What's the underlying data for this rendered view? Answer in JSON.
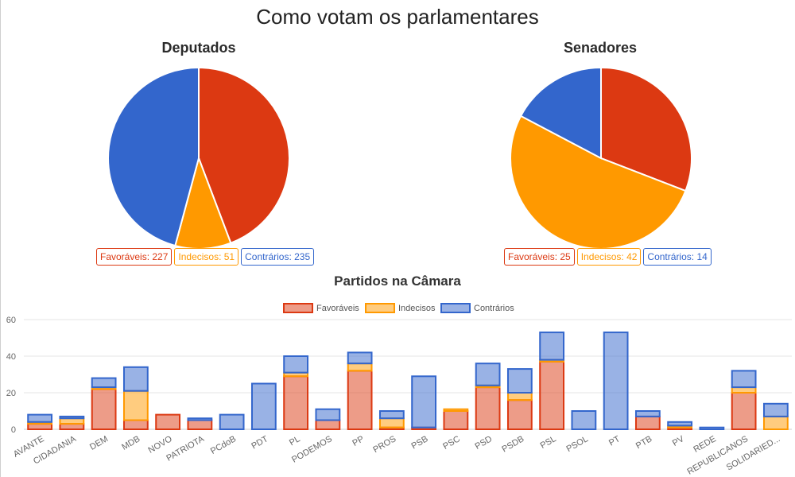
{
  "page": {
    "title": "Como votam os parlamentares"
  },
  "colors": {
    "favoraveis": "#dc3912",
    "indecisos": "#ff9900",
    "contrarios": "#3366cc"
  },
  "deputados": {
    "title": "Deputados",
    "legend": {
      "favoraveis": "Favoráveis: 227",
      "indecisos": "Indecisos: 51",
      "contrarios": "Contrários: 235"
    }
  },
  "senadores": {
    "title": "Senadores",
    "legend": {
      "favoraveis": "Favoráveis: 25",
      "indecisos": "Indecisos: 42",
      "contrarios": "Contrários: 14"
    }
  },
  "partidos": {
    "title": "Partidos na Câmara"
  },
  "chart_data": [
    {
      "type": "pie",
      "title": "Deputados",
      "labels": [
        "Favoráveis",
        "Indecisos",
        "Contrários"
      ],
      "values": [
        227,
        51,
        235
      ]
    },
    {
      "type": "pie",
      "title": "Senadores",
      "labels": [
        "Favoráveis",
        "Indecisos",
        "Contrários"
      ],
      "values": [
        25,
        42,
        14
      ]
    },
    {
      "type": "bar",
      "stacked": true,
      "title": "Partidos na Câmara",
      "legend_position": "top",
      "ylim": [
        0,
        60
      ],
      "yticks": [
        0,
        20,
        40,
        60
      ],
      "categories": [
        "AVANTE",
        "CIDADANIA",
        "DEM",
        "MDB",
        "NOVO",
        "PATRIOTA",
        "PCdoB",
        "PDT",
        "PL",
        "PODEMOS",
        "PP",
        "PROS",
        "PSB",
        "PSC",
        "PSD",
        "PSDB",
        "PSL",
        "PSOL",
        "PT",
        "PTB",
        "PV",
        "REDE",
        "REPUBLICANOS",
        "SOLIDARIED..."
      ],
      "series": [
        {
          "name": "Favoráveis",
          "values": [
            3,
            3,
            22,
            5,
            8,
            5,
            0,
            0,
            29,
            5,
            32,
            1,
            1,
            10,
            23,
            16,
            37,
            0,
            0,
            7,
            1,
            0,
            20,
            0
          ]
        },
        {
          "name": "Indecisos",
          "values": [
            1,
            3,
            1,
            16,
            0,
            0,
            0,
            0,
            2,
            0,
            4,
            5,
            0,
            1,
            1,
            4,
            1,
            0,
            0,
            0,
            1,
            0,
            3,
            7
          ]
        },
        {
          "name": "Contrários",
          "values": [
            4,
            1,
            5,
            13,
            0,
            1,
            8,
            25,
            9,
            6,
            6,
            4,
            28,
            0,
            12,
            13,
            15,
            10,
            53,
            3,
            2,
            1,
            9,
            7
          ]
        }
      ]
    }
  ]
}
